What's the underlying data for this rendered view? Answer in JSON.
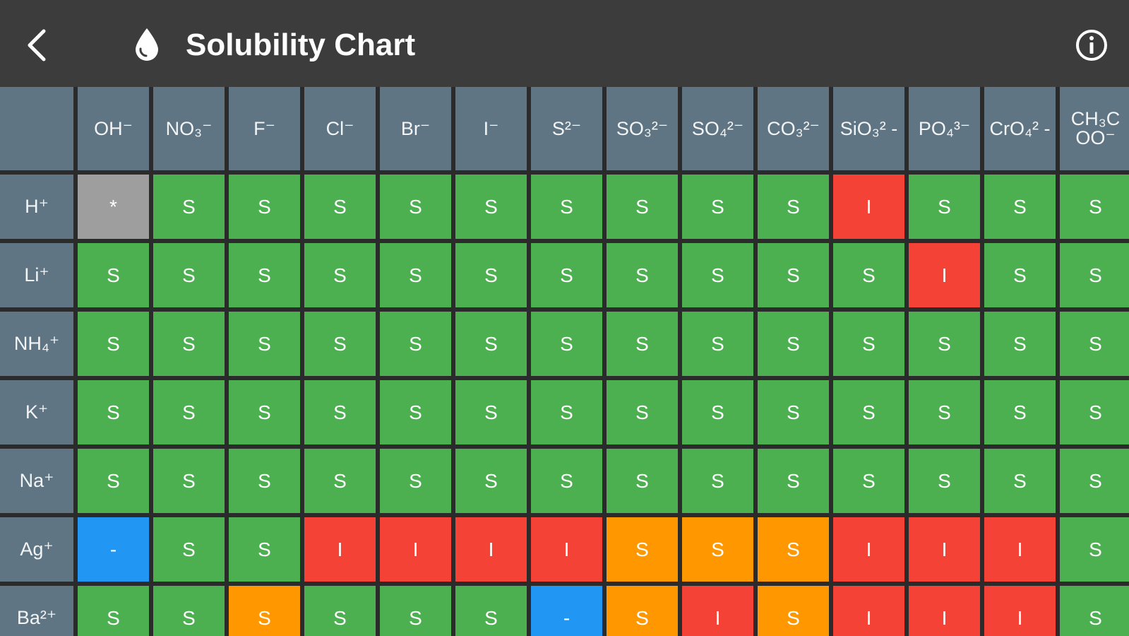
{
  "header": {
    "title": "Solubility Chart",
    "back_icon": "chevron-left-icon",
    "title_icon": "water-drop-icon",
    "info_icon": "info-circle-icon"
  },
  "colors": {
    "soluble": "#4caf50",
    "insoluble": "#f44336",
    "slightly_soluble": "#ff9800",
    "no_reaction": "#2196f3",
    "na": "#9e9e9e",
    "header_bg": "#5f7584",
    "app_bar": "#3c3c3c"
  },
  "columns": [
    "OH⁻",
    "NO₃⁻",
    "F⁻",
    "Cl⁻",
    "Br⁻",
    "I⁻",
    "S²⁻",
    "SO₃²⁻",
    "SO₄²⁻",
    "CO₃²⁻",
    "SiO₃² -",
    "PO₄³⁻",
    "CrO₄² -",
    "CH₃C OO⁻"
  ],
  "rows": [
    {
      "label": "H⁺",
      "cells": [
        {
          "v": "*",
          "c": "A"
        },
        {
          "v": "S",
          "c": "S"
        },
        {
          "v": "S",
          "c": "S"
        },
        {
          "v": "S",
          "c": "S"
        },
        {
          "v": "S",
          "c": "S"
        },
        {
          "v": "S",
          "c": "S"
        },
        {
          "v": "S",
          "c": "S"
        },
        {
          "v": "S",
          "c": "S"
        },
        {
          "v": "S",
          "c": "S"
        },
        {
          "v": "S",
          "c": "S"
        },
        {
          "v": "I",
          "c": "I"
        },
        {
          "v": "S",
          "c": "S"
        },
        {
          "v": "S",
          "c": "S"
        },
        {
          "v": "S",
          "c": "S"
        }
      ]
    },
    {
      "label": "Li⁺",
      "cells": [
        {
          "v": "S",
          "c": "S"
        },
        {
          "v": "S",
          "c": "S"
        },
        {
          "v": "S",
          "c": "S"
        },
        {
          "v": "S",
          "c": "S"
        },
        {
          "v": "S",
          "c": "S"
        },
        {
          "v": "S",
          "c": "S"
        },
        {
          "v": "S",
          "c": "S"
        },
        {
          "v": "S",
          "c": "S"
        },
        {
          "v": "S",
          "c": "S"
        },
        {
          "v": "S",
          "c": "S"
        },
        {
          "v": "S",
          "c": "S"
        },
        {
          "v": "I",
          "c": "I"
        },
        {
          "v": "S",
          "c": "S"
        },
        {
          "v": "S",
          "c": "S"
        }
      ]
    },
    {
      "label": "NH₄⁺",
      "cells": [
        {
          "v": "S",
          "c": "S"
        },
        {
          "v": "S",
          "c": "S"
        },
        {
          "v": "S",
          "c": "S"
        },
        {
          "v": "S",
          "c": "S"
        },
        {
          "v": "S",
          "c": "S"
        },
        {
          "v": "S",
          "c": "S"
        },
        {
          "v": "S",
          "c": "S"
        },
        {
          "v": "S",
          "c": "S"
        },
        {
          "v": "S",
          "c": "S"
        },
        {
          "v": "S",
          "c": "S"
        },
        {
          "v": "S",
          "c": "S"
        },
        {
          "v": "S",
          "c": "S"
        },
        {
          "v": "S",
          "c": "S"
        },
        {
          "v": "S",
          "c": "S"
        }
      ]
    },
    {
      "label": "K⁺",
      "cells": [
        {
          "v": "S",
          "c": "S"
        },
        {
          "v": "S",
          "c": "S"
        },
        {
          "v": "S",
          "c": "S"
        },
        {
          "v": "S",
          "c": "S"
        },
        {
          "v": "S",
          "c": "S"
        },
        {
          "v": "S",
          "c": "S"
        },
        {
          "v": "S",
          "c": "S"
        },
        {
          "v": "S",
          "c": "S"
        },
        {
          "v": "S",
          "c": "S"
        },
        {
          "v": "S",
          "c": "S"
        },
        {
          "v": "S",
          "c": "S"
        },
        {
          "v": "S",
          "c": "S"
        },
        {
          "v": "S",
          "c": "S"
        },
        {
          "v": "S",
          "c": "S"
        }
      ]
    },
    {
      "label": "Na⁺",
      "cells": [
        {
          "v": "S",
          "c": "S"
        },
        {
          "v": "S",
          "c": "S"
        },
        {
          "v": "S",
          "c": "S"
        },
        {
          "v": "S",
          "c": "S"
        },
        {
          "v": "S",
          "c": "S"
        },
        {
          "v": "S",
          "c": "S"
        },
        {
          "v": "S",
          "c": "S"
        },
        {
          "v": "S",
          "c": "S"
        },
        {
          "v": "S",
          "c": "S"
        },
        {
          "v": "S",
          "c": "S"
        },
        {
          "v": "S",
          "c": "S"
        },
        {
          "v": "S",
          "c": "S"
        },
        {
          "v": "S",
          "c": "S"
        },
        {
          "v": "S",
          "c": "S"
        }
      ]
    },
    {
      "label": "Ag⁺",
      "cells": [
        {
          "v": "-",
          "c": "X"
        },
        {
          "v": "S",
          "c": "S"
        },
        {
          "v": "S",
          "c": "S"
        },
        {
          "v": "I",
          "c": "I"
        },
        {
          "v": "I",
          "c": "I"
        },
        {
          "v": "I",
          "c": "I"
        },
        {
          "v": "I",
          "c": "I"
        },
        {
          "v": "S",
          "c": "P"
        },
        {
          "v": "S",
          "c": "P"
        },
        {
          "v": "S",
          "c": "P"
        },
        {
          "v": "I",
          "c": "I"
        },
        {
          "v": "I",
          "c": "I"
        },
        {
          "v": "I",
          "c": "I"
        },
        {
          "v": "S",
          "c": "S"
        }
      ]
    },
    {
      "label": "Ba²⁺",
      "cells": [
        {
          "v": "S",
          "c": "S"
        },
        {
          "v": "S",
          "c": "S"
        },
        {
          "v": "S",
          "c": "P"
        },
        {
          "v": "S",
          "c": "S"
        },
        {
          "v": "S",
          "c": "S"
        },
        {
          "v": "S",
          "c": "S"
        },
        {
          "v": "-",
          "c": "X"
        },
        {
          "v": "S",
          "c": "P"
        },
        {
          "v": "I",
          "c": "I"
        },
        {
          "v": "S",
          "c": "P"
        },
        {
          "v": "I",
          "c": "I"
        },
        {
          "v": "I",
          "c": "I"
        },
        {
          "v": "I",
          "c": "I"
        },
        {
          "v": "S",
          "c": "S"
        }
      ]
    }
  ]
}
